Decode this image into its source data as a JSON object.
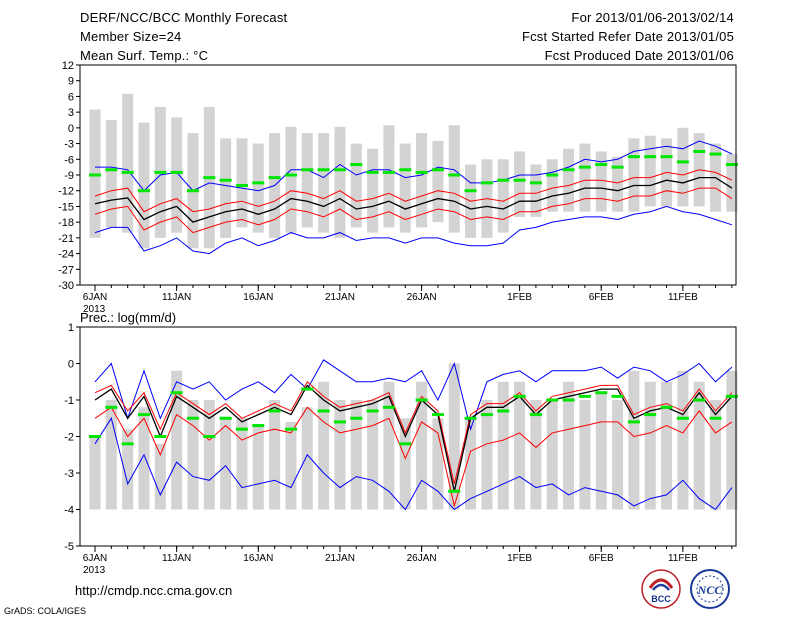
{
  "header": {
    "title": "DERF/NCC/BCC Monthly Forecast",
    "member_size": "Member Size=24",
    "variable": "Mean Surf. Temp.: °C",
    "period": "For 2013/01/06-2013/02/14",
    "start_date": "Fcst Started Refer Date 2013/01/05",
    "produced_date": "Fcst Produced Date 2013/01/06"
  },
  "footer": {
    "url": "http://cmdp.ncc.cma.gov.cn",
    "credit": "GrADS: COLA/IGES",
    "logo_bcc": "BCC",
    "logo_ncc": "NCC"
  },
  "colors": {
    "bar": "#d3d3d3",
    "mean": "#000000",
    "spread": "#ff0000",
    "envelope": "#0000ff",
    "climate": "#00e600"
  },
  "chart_data": [
    {
      "type": "line",
      "title": "Mean Surf. Temp.: °C",
      "x_tick_labels": [
        "6JAN",
        "11JAN",
        "16JAN",
        "21JAN",
        "26JAN",
        "1FEB",
        "6FEB",
        "11FEB"
      ],
      "x_tick_indices": [
        0,
        5,
        10,
        15,
        20,
        26,
        31,
        36
      ],
      "x_year_label": "2013",
      "ylim": [
        -30,
        12
      ],
      "y_ticks": [
        12,
        9,
        6,
        3,
        0,
        -3,
        -6,
        -9,
        -12,
        -15,
        -18,
        -21,
        -24,
        -27,
        -30
      ],
      "series": [
        {
          "name": "bar_top",
          "values": [
            3.5,
            1.5,
            6.5,
            1,
            4,
            2,
            -1,
            4,
            -2,
            -2,
            -3,
            -1,
            0.2,
            -1,
            -1,
            0.2,
            -3,
            -4,
            0.5,
            -3,
            -1,
            -2.5,
            0.5,
            -7,
            -6,
            -6,
            -4.5,
            -7,
            -6,
            -4,
            -3,
            -4.5,
            -5.5,
            -2,
            -1.5,
            -2,
            0,
            -1,
            -3,
            -5
          ]
        },
        {
          "name": "bar_bottom",
          "values": [
            -21,
            -19,
            -20,
            -23,
            -21,
            -20,
            -23,
            -23,
            -21,
            -19,
            -20,
            -21,
            -20,
            -19,
            -20,
            -21,
            -19,
            -20,
            -19,
            -20,
            -19,
            -18,
            -20,
            -21,
            -21,
            -20,
            -17,
            -17,
            -16,
            -16,
            -16,
            -16,
            -16,
            -16,
            -15,
            -15,
            -15,
            -15,
            -16,
            -16
          ]
        },
        {
          "name": "envelope_upper",
          "values": [
            -7.5,
            -7.5,
            -8,
            -12,
            -9,
            -8.5,
            -12,
            -10.5,
            -11,
            -11.5,
            -12,
            -11,
            -8,
            -8,
            -9.5,
            -7,
            -9,
            -8,
            -8,
            -9.5,
            -9,
            -7.5,
            -8,
            -10.5,
            -10.5,
            -10,
            -9,
            -9,
            -8.5,
            -7.5,
            -6,
            -6.5,
            -6,
            -4.5,
            -4,
            -3.5,
            -4,
            -2.5,
            -3.5,
            -5
          ]
        },
        {
          "name": "spread_upper",
          "values": [
            -13,
            -12,
            -11.5,
            -16,
            -14.5,
            -13.5,
            -16,
            -15.5,
            -14.5,
            -14,
            -15,
            -14,
            -12,
            -12.5,
            -13.5,
            -12,
            -14,
            -13.5,
            -12.5,
            -14,
            -13,
            -12,
            -12.5,
            -14,
            -13.5,
            -14,
            -12.5,
            -12.5,
            -11.5,
            -11,
            -10,
            -10,
            -10.5,
            -9.5,
            -9.5,
            -8.5,
            -9,
            -8,
            -8.5,
            -10
          ]
        },
        {
          "name": "mean",
          "values": [
            -14.5,
            -13.8,
            -13.4,
            -17.5,
            -16,
            -15,
            -18,
            -17,
            -16,
            -15.5,
            -16.5,
            -15.5,
            -13.5,
            -14,
            -15,
            -13.5,
            -15.5,
            -15,
            -14,
            -15.5,
            -14.5,
            -13.5,
            -14,
            -15.5,
            -15,
            -15.5,
            -14,
            -14,
            -13,
            -12.5,
            -11.5,
            -11.5,
            -12,
            -11,
            -11,
            -10,
            -10.5,
            -9.5,
            -9.5,
            -11.5
          ]
        },
        {
          "name": "spread_lower",
          "values": [
            -16.5,
            -15.5,
            -15,
            -19.5,
            -18,
            -17,
            -20,
            -19,
            -18,
            -17.5,
            -18.5,
            -17.5,
            -15.5,
            -16,
            -17,
            -15.5,
            -17.5,
            -17,
            -16,
            -17.5,
            -16.5,
            -15.5,
            -16,
            -17.5,
            -17,
            -17.5,
            -16,
            -16,
            -15,
            -14.5,
            -13.5,
            -13.5,
            -14,
            -13,
            -13,
            -12,
            -12.5,
            -11.5,
            -11.5,
            -13.5
          ]
        },
        {
          "name": "envelope_lower",
          "values": [
            -20,
            -19,
            -19,
            -23.5,
            -22.5,
            -21,
            -23.5,
            -24,
            -22,
            -21,
            -22.5,
            -21.5,
            -20,
            -21,
            -21,
            -20,
            -21.5,
            -21,
            -21,
            -22,
            -21,
            -21,
            -22,
            -22.5,
            -22.5,
            -22,
            -19.5,
            -19,
            -18,
            -17.5,
            -17,
            -17,
            -17.5,
            -16.5,
            -16,
            -15,
            -16,
            -16.5,
            -17.5,
            -18.5
          ]
        },
        {
          "name": "climate",
          "values": [
            -9,
            -8,
            -8.5,
            -12,
            -8.5,
            -8.5,
            -12,
            -9.5,
            -10,
            -11,
            -10.5,
            -9.5,
            -9,
            -8,
            -8,
            -8,
            -7,
            -8.5,
            -8.5,
            -8,
            -8.5,
            -8,
            -9,
            -12,
            -10.5,
            -10,
            -10,
            -10.5,
            -9,
            -8,
            -7.5,
            -7,
            -7.5,
            -5.5,
            -5.5,
            -5.5,
            -6.5,
            -4.5,
            -5,
            -7
          ]
        }
      ]
    },
    {
      "type": "line",
      "title": "Prec.: log(mm/d)",
      "x_tick_labels": [
        "6JAN",
        "11JAN",
        "16JAN",
        "21JAN",
        "26JAN",
        "1FEB",
        "6FEB",
        "11FEB"
      ],
      "x_tick_indices": [
        0,
        5,
        10,
        15,
        20,
        26,
        31,
        36
      ],
      "x_year_label": "2013",
      "ylim": [
        -5,
        1
      ],
      "y_ticks": [
        1,
        0,
        -1,
        -2,
        -3,
        -4,
        -5
      ],
      "series": [
        {
          "name": "bar_top",
          "values": [
            -2,
            -1,
            -1.8,
            -1.2,
            -2.2,
            -0.2,
            -1,
            -1,
            -1.5,
            -1.5,
            -1.7,
            -1,
            -1.6,
            -1.2,
            -0.5,
            -1,
            -1,
            -1,
            -0.5,
            -1.5,
            -0.5,
            -1.5,
            0,
            -1.5,
            -1,
            -0.5,
            -0.5,
            -1,
            -1,
            -0.5,
            -1,
            -0.8,
            -1,
            -0.2,
            -0.5,
            -0.5,
            -0.2,
            -0.5,
            -1,
            -0.2
          ]
        },
        {
          "name": "bar_bottom",
          "values": [
            -4,
            -4,
            -4,
            -4,
            -4,
            -4,
            -4,
            -4,
            -4,
            -4,
            -4,
            -4,
            -4,
            -4,
            -4,
            -4,
            -4,
            -4,
            -4,
            -4,
            -4,
            -4,
            -4,
            -4,
            -4,
            -4,
            -4,
            -4,
            -4,
            -4,
            -4,
            -4,
            -4,
            -4,
            -4,
            -4,
            -4,
            -4,
            -4,
            -4
          ]
        },
        {
          "name": "envelope_upper",
          "values": [
            -0.5,
            0,
            -1.5,
            -0.2,
            -1.5,
            -0.5,
            -0.7,
            -0.5,
            -1,
            -0.7,
            -0.5,
            -0.8,
            -0.3,
            -0.7,
            0.1,
            -0.2,
            -0.5,
            -0.5,
            -0.4,
            -0.5,
            -0.2,
            -1,
            0,
            -1.8,
            -0.5,
            -0.3,
            -0.2,
            -0.5,
            -0.2,
            -0.2,
            -0.2,
            -0.1,
            -0.4,
            -0.1,
            -0.2,
            -0.5,
            -0.3,
            0,
            -0.5,
            -0.1
          ]
        },
        {
          "name": "mean",
          "values": [
            -1,
            -0.7,
            -1.5,
            -0.9,
            -2,
            -0.9,
            -1.2,
            -1.5,
            -1.2,
            -1.6,
            -1.4,
            -1.2,
            -1.4,
            -0.6,
            -1,
            -1.3,
            -1.2,
            -1.1,
            -0.9,
            -2,
            -1,
            -1.4,
            -3.5,
            -1.5,
            -1.2,
            -1.2,
            -0.9,
            -1.4,
            -1,
            -0.9,
            -0.8,
            -0.7,
            -0.7,
            -1.5,
            -1.3,
            -1.2,
            -1.4,
            -0.8,
            -1.4,
            -0.9
          ]
        },
        {
          "name": "spread_upper",
          "values": [
            -0.8,
            -0.6,
            -1.3,
            -0.8,
            -1.8,
            -0.8,
            -1.1,
            -1.4,
            -1.1,
            -1.5,
            -1.3,
            -1.1,
            -1.3,
            -0.5,
            -0.9,
            -1.2,
            -1.1,
            -1,
            -0.8,
            -1.9,
            -0.9,
            -1.3,
            -3.3,
            -1.4,
            -1.1,
            -1.1,
            -0.8,
            -1.3,
            -0.9,
            -0.8,
            -0.7,
            -0.6,
            -0.6,
            -1.4,
            -1.2,
            -1.1,
            -1.3,
            -0.7,
            -1.3,
            -0.8
          ]
        },
        {
          "name": "spread_lower",
          "values": [
            -1.5,
            -1.2,
            -2,
            -1.5,
            -2.5,
            -1.4,
            -1.7,
            -2.1,
            -1.7,
            -2.1,
            -1.9,
            -1.8,
            -1.9,
            -1.2,
            -1.6,
            -1.9,
            -1.8,
            -1.7,
            -1.5,
            -2.6,
            -1.6,
            -1.9,
            -3.9,
            -2.4,
            -2.2,
            -2.1,
            -1.9,
            -2.3,
            -1.9,
            -1.8,
            -1.7,
            -1.6,
            -1.6,
            -2,
            -1.9,
            -1.7,
            -1.9,
            -1.3,
            -1.9,
            -1.6
          ]
        },
        {
          "name": "envelope_lower",
          "values": [
            -2.2,
            -1.5,
            -3.3,
            -2.5,
            -3.6,
            -2.7,
            -3.1,
            -3.2,
            -2.8,
            -3.4,
            -3.3,
            -3.2,
            -3.4,
            -2.5,
            -3,
            -3.4,
            -3.1,
            -3.2,
            -3.5,
            -4,
            -3.2,
            -3.5,
            -4,
            -3.7,
            -3.5,
            -3.3,
            -3.1,
            -3.4,
            -3.3,
            -3.6,
            -3.4,
            -3.5,
            -3.6,
            -3.9,
            -3.7,
            -3.6,
            -3.2,
            -3.7,
            -4,
            -3.4
          ]
        },
        {
          "name": "climate",
          "values": [
            -2,
            -1.2,
            -2.2,
            -1.4,
            -2,
            -0.8,
            -1.5,
            -2,
            -1.5,
            -1.8,
            -1.7,
            -1.3,
            -1.8,
            -0.7,
            -1.3,
            -1.6,
            -1.5,
            -1.3,
            -1.2,
            -2.2,
            -1,
            -1.4,
            -3.5,
            -1.5,
            -1.4,
            -1.3,
            -0.9,
            -1.4,
            -1,
            -1,
            -0.9,
            -0.8,
            -0.9,
            -1.6,
            -1.4,
            -1.2,
            -1.5,
            -1,
            -1.5,
            -0.9
          ]
        }
      ]
    }
  ]
}
